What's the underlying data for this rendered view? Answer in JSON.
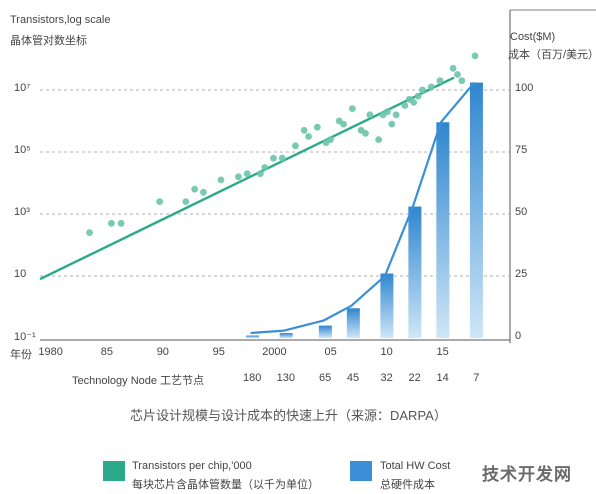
{
  "chart_data": {
    "type": "line",
    "left_axis": {
      "title_line1": "Transistors,log scale",
      "title_line2": "晶体管对数坐标",
      "ticks": [
        "10⁷",
        "10⁵",
        "10³",
        "10",
        "10⁻¹"
      ],
      "tick_exponents": [
        7,
        5,
        3,
        1,
        -1
      ]
    },
    "right_axis": {
      "title_line1": "Cost($M)",
      "title_line2": "成本（百万/美元）",
      "ticks": [
        "100",
        "75",
        "50",
        "25",
        "0"
      ],
      "tick_values": [
        100,
        75,
        50,
        25,
        0
      ],
      "ylim": [
        0,
        100
      ]
    },
    "x_axis": {
      "year_label": "年份",
      "year_ticks": [
        "1980",
        "85",
        "90",
        "95",
        "2000",
        "05",
        "10",
        "15"
      ],
      "year_tick_values": [
        1980,
        1985,
        1990,
        1995,
        2000,
        2005,
        2010,
        2015
      ],
      "node_label": "Technology Node 工艺节点",
      "node_ticks": [
        "180",
        "130",
        "65",
        "45",
        "32",
        "22",
        "14",
        "7"
      ],
      "node_tick_years": [
        1998,
        2001,
        2004.5,
        2007,
        2010,
        2012.5,
        2015,
        2018
      ],
      "xlim": [
        1979,
        2021
      ]
    },
    "caption": "芯片设计规模与设计成本的快速上升（来源：DARPA）",
    "series": [
      {
        "name": "Transistors per chip,'000",
        "name_cn": "每块芯片含晶体管数量（以千为单位）",
        "color": "#2aaa8a",
        "trend_line": [
          [
            1979,
            0.9
          ],
          [
            2016,
            7.4
          ]
        ],
        "points_log10": [
          [
            1982,
            2.4
          ],
          [
            1984.5,
            2.7
          ],
          [
            1985.6,
            2.7
          ],
          [
            1990,
            3.4
          ],
          [
            1993,
            3.4
          ],
          [
            1994,
            3.8
          ],
          [
            1995,
            3.7
          ],
          [
            1997,
            4.1
          ],
          [
            1999,
            4.2
          ],
          [
            2000,
            4.3
          ],
          [
            2001.5,
            4.3
          ],
          [
            2002,
            4.5
          ],
          [
            2003,
            4.8
          ],
          [
            2004,
            4.8
          ],
          [
            2005.5,
            5.2
          ],
          [
            2006.5,
            5.7
          ],
          [
            2007,
            5.5
          ],
          [
            2008,
            5.8
          ],
          [
            2009,
            5.3
          ],
          [
            2009.5,
            5.4
          ],
          [
            2010.5,
            6.0
          ],
          [
            2011,
            5.9
          ],
          [
            2012,
            6.4
          ],
          [
            2013,
            5.7
          ],
          [
            2013.5,
            5.6
          ],
          [
            2014,
            6.2
          ],
          [
            2015,
            5.4
          ],
          [
            2015.5,
            6.2
          ],
          [
            2016,
            6.3
          ],
          [
            2016.5,
            5.9
          ],
          [
            2017,
            6.2
          ],
          [
            2018,
            6.5
          ],
          [
            2018.5,
            6.7
          ],
          [
            2019,
            6.6
          ],
          [
            2019.5,
            6.8
          ],
          [
            2020,
            7.0
          ],
          [
            2021,
            7.1
          ],
          [
            2022,
            7.3
          ],
          [
            2023.5,
            7.7
          ],
          [
            2024,
            7.5
          ],
          [
            2024.5,
            7.3
          ],
          [
            2026,
            8.1
          ]
        ]
      },
      {
        "name": "Total HW Cost",
        "name_cn": "总硬件成本",
        "color": "#3a8fd6",
        "bar_nodes": [
          "180",
          "130",
          "65",
          "45",
          "32",
          "22",
          "14",
          "7"
        ],
        "bar_values": [
          1,
          2,
          5,
          12,
          26,
          53,
          87,
          103
        ],
        "curve_values": [
          2,
          3,
          7,
          13,
          25,
          53,
          87,
          103
        ]
      }
    ]
  },
  "watermark": "技术开发网"
}
